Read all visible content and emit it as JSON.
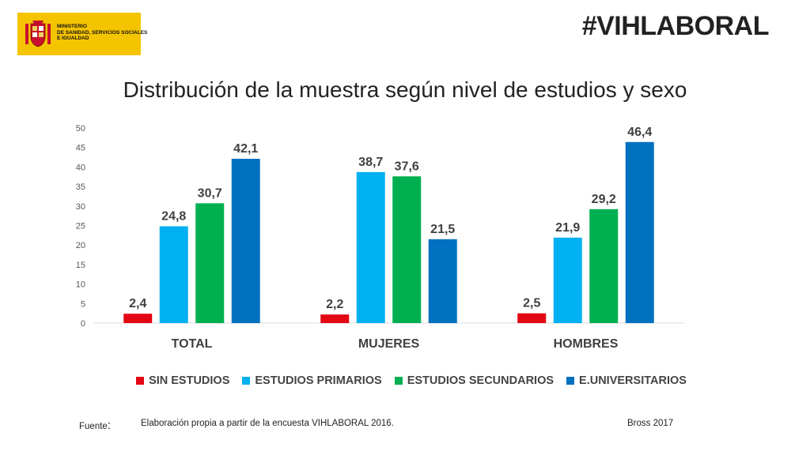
{
  "header": {
    "ministry_lines": [
      "MINISTERIO",
      "DE SANIDAD, SERVICIOS SOCIALES",
      "E IGUALDAD"
    ],
    "hashtag": "#VIHLABORAL"
  },
  "colors": {
    "sin_estudios": "#e30613",
    "estudios_primarios": "#00b0f0",
    "estudios_secundarios": "#00b050",
    "universitarios": "#0070c0"
  },
  "chart_data": {
    "type": "bar",
    "title": "Distribución de la muestra según nivel de estudios y sexo",
    "categories": [
      "TOTAL",
      "MUJERES",
      "HOMBRES"
    ],
    "series": [
      {
        "name": "SIN ESTUDIOS",
        "values": [
          2.4,
          2.2,
          2.5
        ],
        "labels": [
          "2,4",
          "2,2",
          "2,5"
        ]
      },
      {
        "name": "ESTUDIOS PRIMARIOS",
        "values": [
          24.8,
          38.7,
          21.9
        ],
        "labels": [
          "24,8",
          "38,7",
          "21,9"
        ]
      },
      {
        "name": "ESTUDIOS SECUNDARIOS",
        "values": [
          30.7,
          37.6,
          29.2
        ],
        "labels": [
          "30,7",
          "37,6",
          "29,2"
        ]
      },
      {
        "name": "E.UNIVERSITARIOS",
        "values": [
          42.1,
          21.5,
          46.4
        ],
        "labels": [
          "42,1",
          "21,5",
          "46,4"
        ]
      }
    ],
    "yticks": [
      "0",
      "5",
      "10",
      "15",
      "20",
      "25",
      "30",
      "35",
      "40",
      "45",
      "50"
    ],
    "ylim": [
      0,
      50
    ],
    "xlabel": "",
    "ylabel": "",
    "legend": "bottom",
    "grid": false
  },
  "footer": {
    "source_label": "Fuente",
    "source_colon": ":",
    "source_text": "Elaboración propia a partir de la encuesta  VIHLABORAL 2016.",
    "credit": "Bross 2017"
  }
}
